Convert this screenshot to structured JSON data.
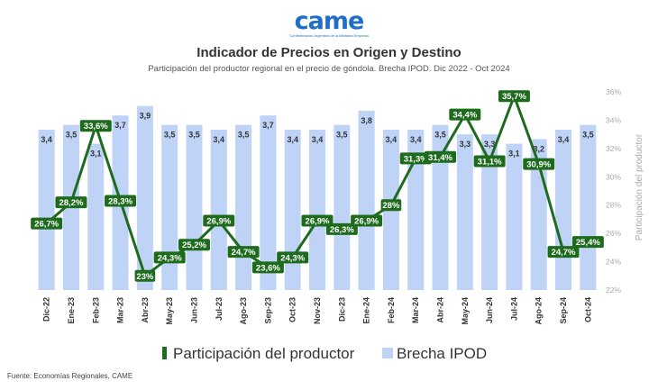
{
  "logo": {
    "text": "came",
    "subtitle": "Confederación Argentina de la Mediana Empresa"
  },
  "title": "Indicador de Precios en Origen y Destino",
  "subtitle": "Participación del productor regional en el precio de góndola. Brecha IPOD. Dic 2022 - Oct 2024",
  "source": "Fuente: Economías Regionales, CAME",
  "colors": {
    "bar": "#bfd3f7",
    "line": "#1e6b1e",
    "label_box": "#1e6b1e",
    "axis_text": "#aaaaaa"
  },
  "chart_data": {
    "type": "bar+line",
    "categories": [
      "Dic-22",
      "Ene-23",
      "Feb-23",
      "Mar-23",
      "Abr-23",
      "May-23",
      "Jun-23",
      "Jul-23",
      "Ago-23",
      "Sep-23",
      "Oct-23",
      "Nov-23",
      "Dic-23",
      "Ene-24",
      "Feb-24",
      "Mar-24",
      "Abr-24",
      "May-24",
      "Jun-24",
      "Jul-24",
      "Ago-24",
      "Sep-24",
      "Oct-24"
    ],
    "bar_series": {
      "name": "Brecha IPOD",
      "values": [
        3.4,
        3.5,
        3.1,
        3.7,
        3.9,
        3.5,
        3.5,
        3.4,
        3.5,
        3.7,
        3.4,
        3.4,
        3.5,
        3.8,
        3.4,
        3.4,
        3.5,
        3.3,
        3.3,
        3.1,
        3.2,
        3.4,
        3.5
      ],
      "labels": [
        "3,4",
        "3,5",
        "3,1",
        "3,7",
        "3,9",
        "3,5",
        "3,5",
        "3,4",
        "3,5",
        "3,7",
        "3,4",
        "3,4",
        "3,5",
        "3,8",
        "3,4",
        "3,4",
        "3,5",
        "3,3",
        "3,3",
        "3,1",
        "3,2",
        "3,4",
        "3,5"
      ],
      "ylim": [
        0,
        4.2
      ]
    },
    "line_series": {
      "name": "Participación del productor",
      "values": [
        26.7,
        28.2,
        33.6,
        28.3,
        23.0,
        24.3,
        25.2,
        26.9,
        24.7,
        23.6,
        24.3,
        26.9,
        26.3,
        26.9,
        28.0,
        31.3,
        31.4,
        34.4,
        31.1,
        35.7,
        30.9,
        24.7,
        25.4
      ],
      "labels": [
        "26,7%",
        "28,2%",
        "33,6%",
        "28,3%",
        "23%",
        "24,3%",
        "25,2%",
        "26,9%",
        "24,7%",
        "23,6%",
        "24,3%",
        "26,9%",
        "26,3%",
        "26,9%",
        "28%",
        "31,3%",
        "31,4%",
        "34,4%",
        "31,1%",
        "35,7%",
        "30,9%",
        "24,7%",
        "25,4%"
      ]
    },
    "y_right": {
      "label": "Participación del productor",
      "ticks": [
        "22%",
        "24%",
        "26%",
        "28%",
        "30%",
        "32%",
        "34%",
        "36%"
      ],
      "tick_values": [
        22,
        24,
        26,
        28,
        30,
        32,
        34,
        36
      ],
      "range": [
        22,
        36
      ]
    },
    "legend": {
      "position": "bottom",
      "items": [
        {
          "label": "Participación del productor",
          "marker": "line"
        },
        {
          "label": "Brecha IPOD",
          "marker": "square"
        }
      ]
    }
  }
}
